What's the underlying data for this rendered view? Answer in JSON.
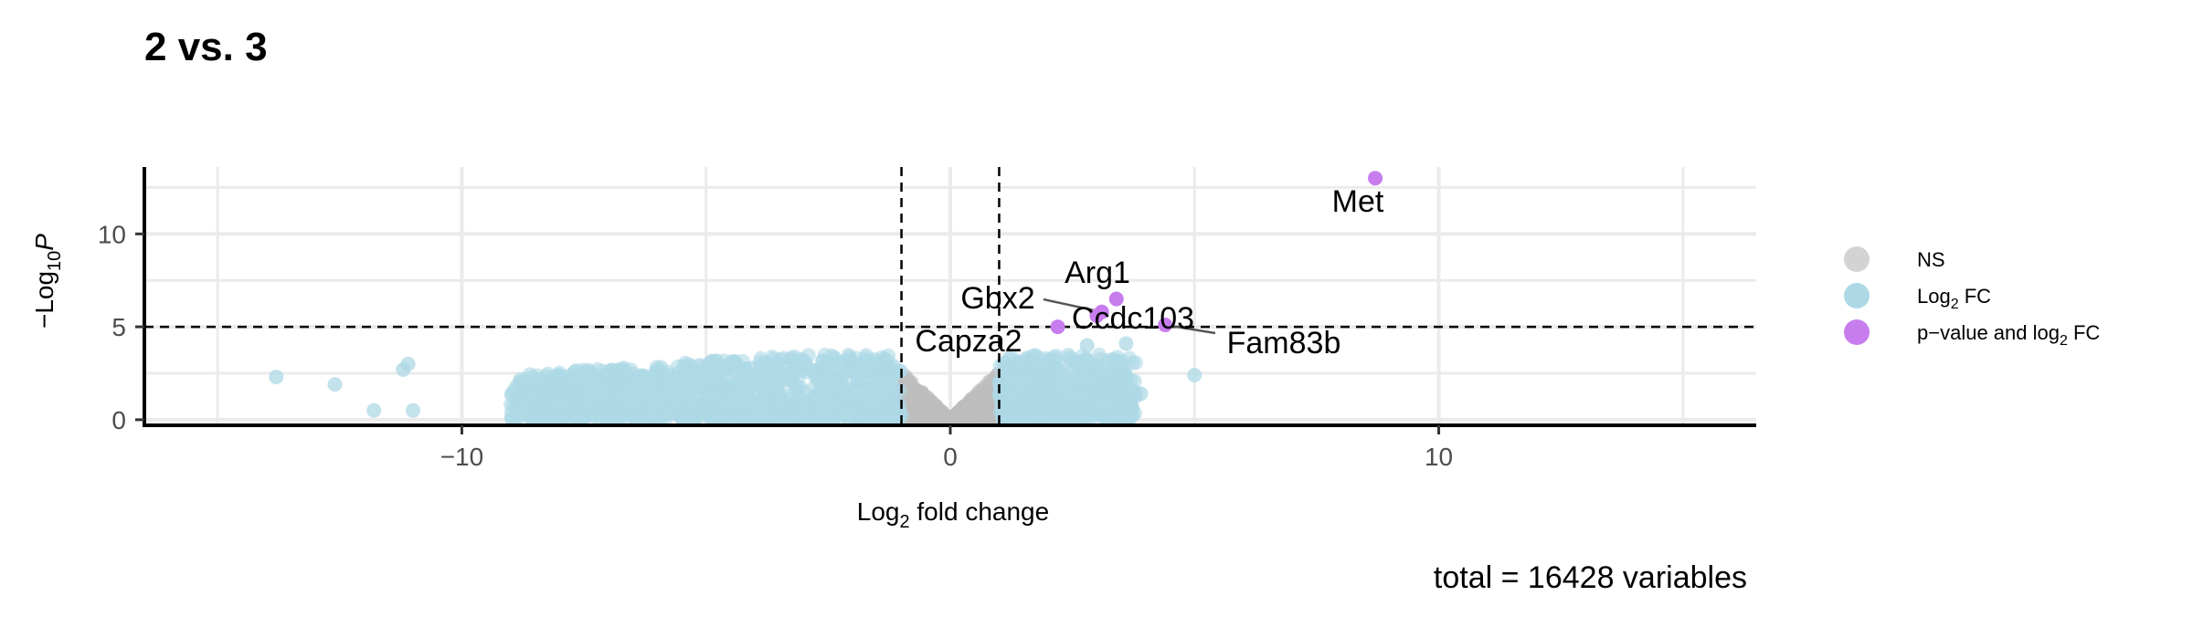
{
  "chart_data": {
    "type": "scatter",
    "title": "2 vs. 3",
    "xlabel_main": "Log",
    "xlabel_sub": "2",
    "xlabel_rest": " fold change",
    "ylabel_prefix": "−Log",
    "ylabel_sub": "10",
    "ylabel_italic": "P",
    "xlim": [
      -16.5,
      16.5
    ],
    "ylim": [
      -0.3,
      13.6
    ],
    "x_ticks": [
      -10,
      0,
      10
    ],
    "x_tick_labels": [
      "−10",
      "0",
      "10"
    ],
    "y_ticks": [
      0,
      5,
      10
    ],
    "y_tick_labels": [
      "0",
      "5",
      "10"
    ],
    "grid": true,
    "fc_cutoff": 1,
    "p_cutoff": 5,
    "caption": "total = 16428 variables",
    "legend": {
      "position": "right",
      "items": [
        {
          "key": "ns",
          "text": "NS",
          "color": "#d3d3d3"
        },
        {
          "key": "fc",
          "text_main": "Log",
          "text_sub": "2",
          "text_rest": " FC",
          "color": "#add8e6"
        },
        {
          "key": "both",
          "text_main": "p−value and log",
          "text_sub": "2",
          "text_rest": " FC",
          "color": "#c77ded"
        }
      ]
    },
    "colors": {
      "ns": "#bdbdbd",
      "fc": "#add8e6",
      "both": "#c77ded"
    },
    "highlighted_points": [
      {
        "label": "Met",
        "x": 8.7,
        "y": 13.0
      },
      {
        "label": "Arg1",
        "x": 3.4,
        "y": 6.5
      },
      {
        "label": "Gbx2",
        "x": 3.1,
        "y": 5.8
      },
      {
        "label": "Ccdc103",
        "x": 3.0,
        "y": 5.6
      },
      {
        "label": "Capza2",
        "x": 2.2,
        "y": 5.0
      },
      {
        "label": "Fam83b",
        "x": 4.4,
        "y": 5.1
      }
    ],
    "outlier_fc_points": [
      {
        "x": -13.8,
        "y": 2.3
      },
      {
        "x": -12.6,
        "y": 1.9
      },
      {
        "x": -11.8,
        "y": 0.5
      },
      {
        "x": -11.2,
        "y": 2.7
      },
      {
        "x": -11.1,
        "y": 3.0
      },
      {
        "x": -11.0,
        "y": 0.5
      },
      {
        "x": 5.0,
        "y": 2.4
      },
      {
        "x": 3.6,
        "y": 4.1
      },
      {
        "x": 2.8,
        "y": 4.0
      },
      {
        "x": 3.9,
        "y": 1.4
      }
    ],
    "point_cloud": {
      "fc_left_x": [
        -9.0,
        -1.0
      ],
      "fc_right_x": [
        1.0,
        3.8
      ],
      "ns_x": [
        -1.0,
        1.0
      ],
      "typical_y_max": 3.5
    }
  }
}
